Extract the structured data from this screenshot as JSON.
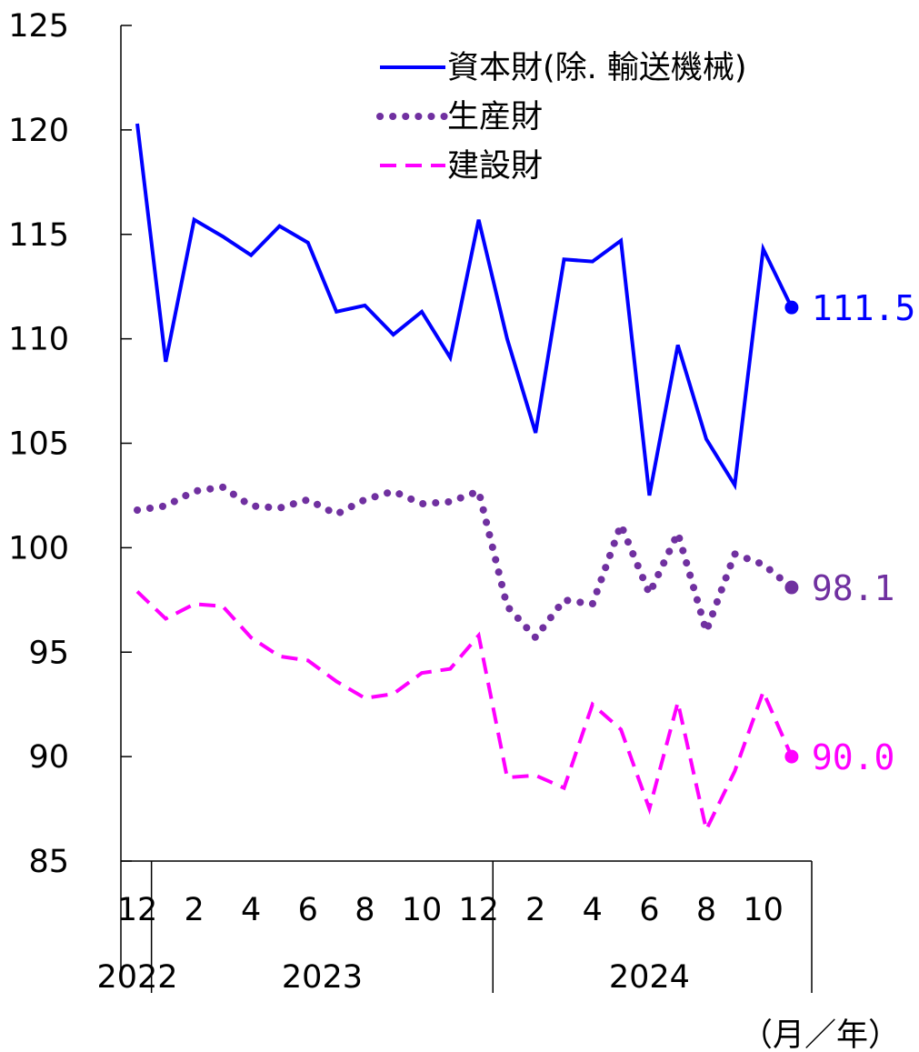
{
  "chart_data": {
    "type": "line",
    "ylim": [
      85,
      125
    ],
    "yticks": [
      85,
      90,
      95,
      100,
      105,
      110,
      115,
      120,
      125
    ],
    "x": [
      "2022-12",
      "2023-01",
      "2023-02",
      "2023-03",
      "2023-04",
      "2023-05",
      "2023-06",
      "2023-07",
      "2023-08",
      "2023-09",
      "2023-10",
      "2023-11",
      "2023-12",
      "2024-01",
      "2024-02",
      "2024-03",
      "2024-04",
      "2024-05",
      "2024-06",
      "2024-07",
      "2024-08",
      "2024-09",
      "2024-10",
      "2024-11"
    ],
    "xtick_labels": [
      {
        "index": 0,
        "label": "12"
      },
      {
        "index": 2,
        "label": "2"
      },
      {
        "index": 4,
        "label": "4"
      },
      {
        "index": 6,
        "label": "6"
      },
      {
        "index": 8,
        "label": "8"
      },
      {
        "index": 10,
        "label": "10"
      },
      {
        "index": 12,
        "label": "12"
      },
      {
        "index": 14,
        "label": "2"
      },
      {
        "index": 16,
        "label": "4"
      },
      {
        "index": 18,
        "label": "6"
      },
      {
        "index": 20,
        "label": "8"
      },
      {
        "index": 22,
        "label": "10"
      }
    ],
    "year_labels": [
      {
        "label": "2022",
        "start": 0,
        "end": 0
      },
      {
        "label": "2023",
        "start": 1,
        "end": 12
      },
      {
        "label": "2024",
        "start": 13,
        "end": 23
      }
    ],
    "unit_label": "（月／年）",
    "series": [
      {
        "name": "資本財(除. 輸送機械)",
        "color": "#0000ff",
        "style": "solid",
        "values": [
          120.3,
          108.9,
          115.7,
          114.9,
          114.0,
          115.4,
          114.6,
          111.3,
          111.6,
          110.2,
          111.3,
          109.1,
          115.7,
          110.0,
          105.5,
          113.8,
          113.7,
          114.7,
          102.5,
          109.7,
          105.2,
          103.0,
          114.3,
          111.5
        ],
        "end_label": "111.5"
      },
      {
        "name": "生産財",
        "color": "#7030a0",
        "style": "dotted",
        "values": [
          101.8,
          102.0,
          102.7,
          102.9,
          102.0,
          101.9,
          102.3,
          101.6,
          102.3,
          102.7,
          102.1,
          102.2,
          102.7,
          97.2,
          95.7,
          97.5,
          97.3,
          101.1,
          97.8,
          100.7,
          96.0,
          99.7,
          99.2,
          98.1
        ],
        "end_label": "98.1"
      },
      {
        "name": "建設財",
        "color": "#ff00ff",
        "style": "dashed",
        "values": [
          97.9,
          96.6,
          97.3,
          97.2,
          95.7,
          94.8,
          94.6,
          93.6,
          92.8,
          93.0,
          94.0,
          94.2,
          95.8,
          89.0,
          89.1,
          88.5,
          92.5,
          91.3,
          87.5,
          92.6,
          86.5,
          89.3,
          93.1,
          90.0
        ],
        "end_label": "90.0"
      }
    ]
  }
}
